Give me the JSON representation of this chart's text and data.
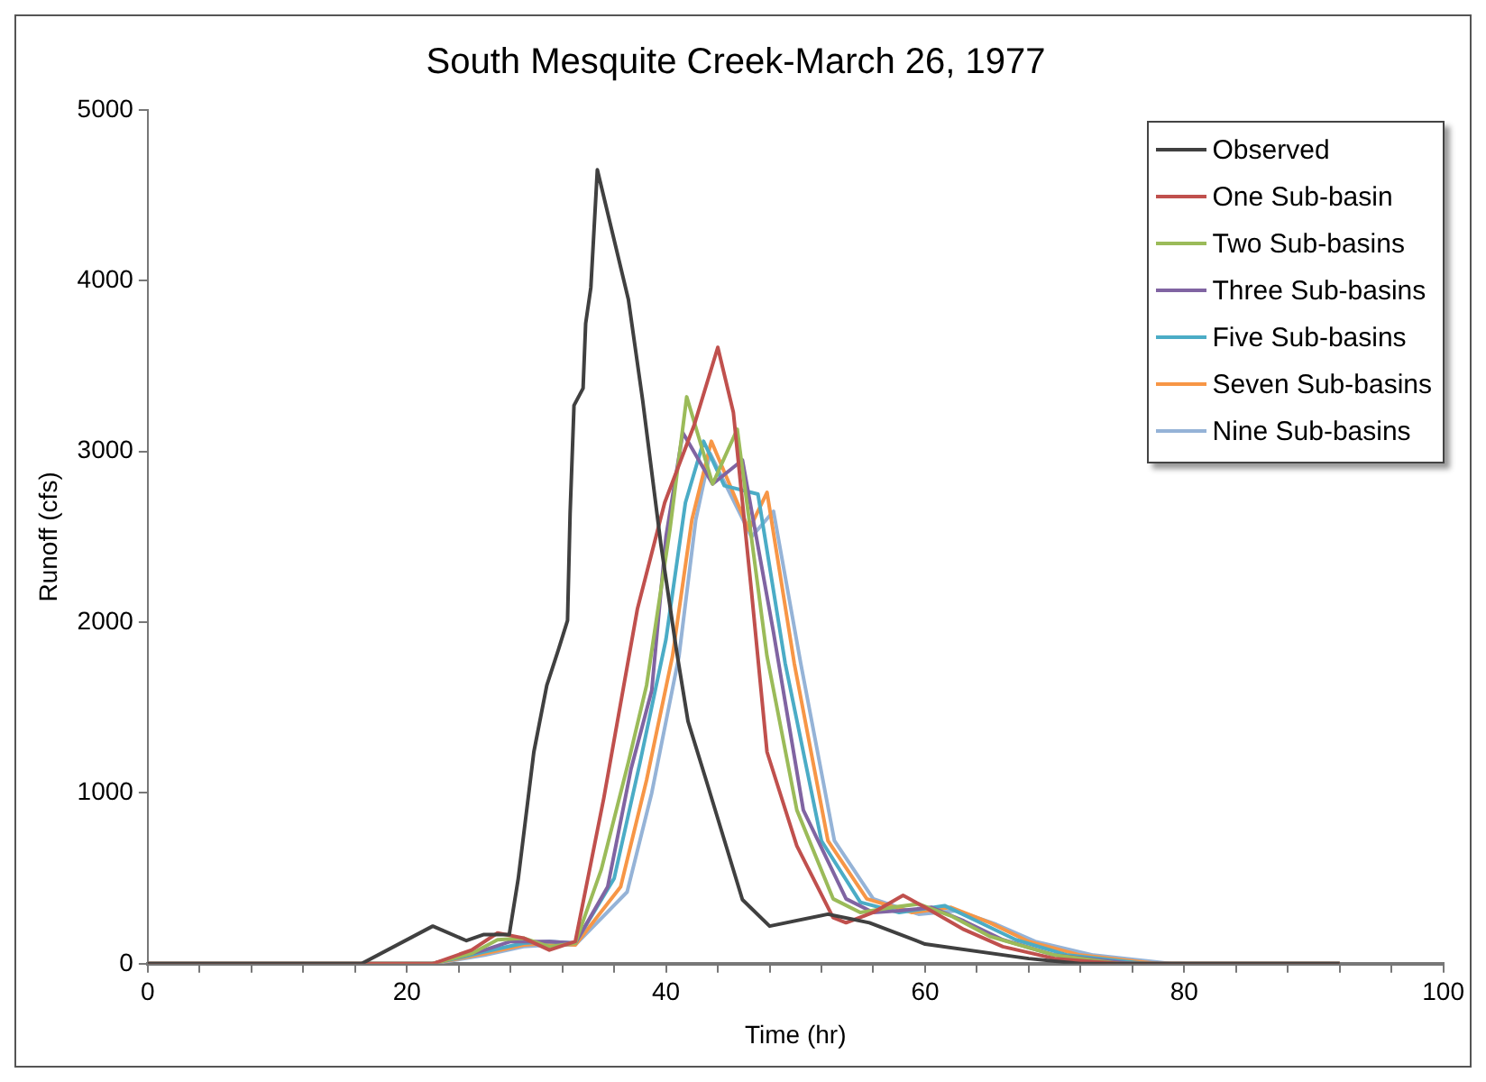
{
  "chart_data": {
    "type": "line",
    "title": "South Mesquite Creek-March 26, 1977",
    "xlabel": "Time (hr)",
    "ylabel": "Runoff (cfs)",
    "xlim": [
      0,
      100
    ],
    "ylim": [
      0,
      5000
    ],
    "xticks": [
      0,
      {
        "value": 4,
        "label": null
      },
      {
        "value": 8,
        "label": null
      },
      {
        "value": 12,
        "label": null
      },
      {
        "value": 16,
        "label": null
      },
      20,
      {
        "value": 24,
        "label": null
      },
      {
        "value": 28,
        "label": null
      },
      {
        "value": 32,
        "label": null
      },
      {
        "value": 36,
        "label": null
      },
      40,
      {
        "value": 44,
        "label": null
      },
      {
        "value": 48,
        "label": null
      },
      {
        "value": 52,
        "label": null
      },
      {
        "value": 56,
        "label": null
      },
      60,
      {
        "value": 64,
        "label": null
      },
      {
        "value": 68,
        "label": null
      },
      {
        "value": 72,
        "label": null
      },
      {
        "value": 76,
        "label": null
      },
      80,
      {
        "value": 84,
        "label": null
      },
      {
        "value": 88,
        "label": null
      },
      {
        "value": 92,
        "label": null
      },
      {
        "value": 96,
        "label": null
      },
      100
    ],
    "yticks": [
      0,
      1000,
      2000,
      3000,
      4000,
      5000
    ],
    "legend": "top right",
    "marker": "none",
    "line_style": "solid",
    "series": [
      {
        "name": "Observed",
        "color": "#404040",
        "x": [
          0,
          16.5,
          22,
          24.6,
          25.9,
          27.9,
          28.6,
          29.8,
          30.8,
          31.7,
          32.4,
          32.6,
          32.9,
          33.6,
          33.8,
          34.2,
          34.7,
          37.1,
          38.2,
          39.6,
          40.8,
          41.7,
          43.1,
          45.9,
          48,
          52.5,
          55.7,
          60,
          68,
          72,
          92
        ],
        "values": [
          0,
          0,
          220,
          135,
          170,
          170,
          500,
          1240,
          1630,
          1840,
          2010,
          2640,
          3270,
          3370,
          3750,
          3960,
          4650,
          3890,
          3300,
          2460,
          1840,
          1420,
          1075,
          375,
          220,
          290,
          240,
          115,
          30,
          0,
          0
        ]
      },
      {
        "name": "One Sub-basin",
        "color": "#c0504d",
        "x": [
          0,
          22,
          25,
          27,
          29,
          31,
          33,
          35.2,
          37.8,
          39.9,
          42.2,
          44,
          45.2,
          46.6,
          47.8,
          50.1,
          52.9,
          53.9,
          56,
          58.3,
          60,
          63,
          66,
          70,
          75,
          92
        ],
        "values": [
          0,
          0,
          80,
          180,
          150,
          80,
          130,
          970,
          2080,
          2700,
          3160,
          3610,
          3230,
          2180,
          1240,
          690,
          270,
          240,
          300,
          400,
          330,
          200,
          100,
          30,
          0,
          0
        ]
      },
      {
        "name": "Two Sub-basins",
        "color": "#9bbb59",
        "x": [
          0,
          22,
          25,
          27,
          29,
          31,
          33,
          35,
          37.1,
          38.5,
          40.3,
          41.6,
          43.6,
          45.5,
          47.8,
          50.1,
          52.9,
          55,
          57.5,
          59.5,
          62,
          65,
          70,
          75,
          92
        ],
        "values": [
          0,
          0,
          60,
          140,
          150,
          100,
          120,
          550,
          1180,
          1630,
          2540,
          3320,
          2810,
          3130,
          1800,
          900,
          380,
          300,
          330,
          350,
          280,
          160,
          50,
          0,
          0
        ]
      },
      {
        "name": "Three Sub-basins",
        "color": "#8064a2",
        "x": [
          0,
          22,
          26,
          28,
          31,
          33,
          35.5,
          37.3,
          38.9,
          40,
          41.3,
          43.6,
          45.9,
          48.3,
          50.6,
          53.9,
          56,
          58,
          60.5,
          63,
          66,
          70,
          76,
          92
        ],
        "values": [
          0,
          0,
          80,
          130,
          130,
          120,
          450,
          1140,
          1600,
          2500,
          3110,
          2810,
          2950,
          1940,
          900,
          380,
          300,
          310,
          330,
          250,
          140,
          50,
          0,
          0
        ]
      },
      {
        "name": "Five Sub-basins",
        "color": "#4bacc6",
        "x": [
          0,
          22,
          26,
          29,
          31,
          33,
          36,
          38,
          40,
          41.5,
          42.9,
          44.5,
          47.1,
          49.2,
          52,
          55,
          58,
          61.5,
          64,
          67,
          71,
          77,
          92
        ],
        "values": [
          0,
          0,
          70,
          120,
          130,
          120,
          500,
          1180,
          1900,
          2700,
          3060,
          2800,
          2750,
          1760,
          720,
          360,
          300,
          340,
          250,
          140,
          50,
          0,
          0
        ]
      },
      {
        "name": "Seven Sub-basins",
        "color": "#f79646",
        "x": [
          0,
          22,
          26,
          29,
          31,
          33,
          36.5,
          38.5,
          40.5,
          42,
          43.5,
          46.4,
          47.8,
          49.9,
          52.5,
          55.5,
          59,
          62,
          65,
          68,
          72,
          78,
          92
        ],
        "values": [
          0,
          0,
          60,
          110,
          120,
          110,
          450,
          1075,
          1800,
          2600,
          3060,
          2540,
          2760,
          1760,
          720,
          380,
          300,
          330,
          240,
          130,
          50,
          0,
          0
        ]
      },
      {
        "name": "Nine Sub-basins",
        "color": "#95b3d7",
        "x": [
          0,
          22,
          26,
          29,
          31,
          33,
          37,
          38.9,
          41,
          42.3,
          43.4,
          46.6,
          48.3,
          50.4,
          53,
          56,
          59.5,
          62.5,
          65.5,
          68.5,
          73,
          79,
          92
        ],
        "values": [
          0,
          0,
          50,
          100,
          110,
          110,
          420,
          1000,
          1800,
          2600,
          2990,
          2500,
          2650,
          1760,
          720,
          380,
          290,
          310,
          230,
          130,
          50,
          0,
          0
        ]
      }
    ]
  }
}
